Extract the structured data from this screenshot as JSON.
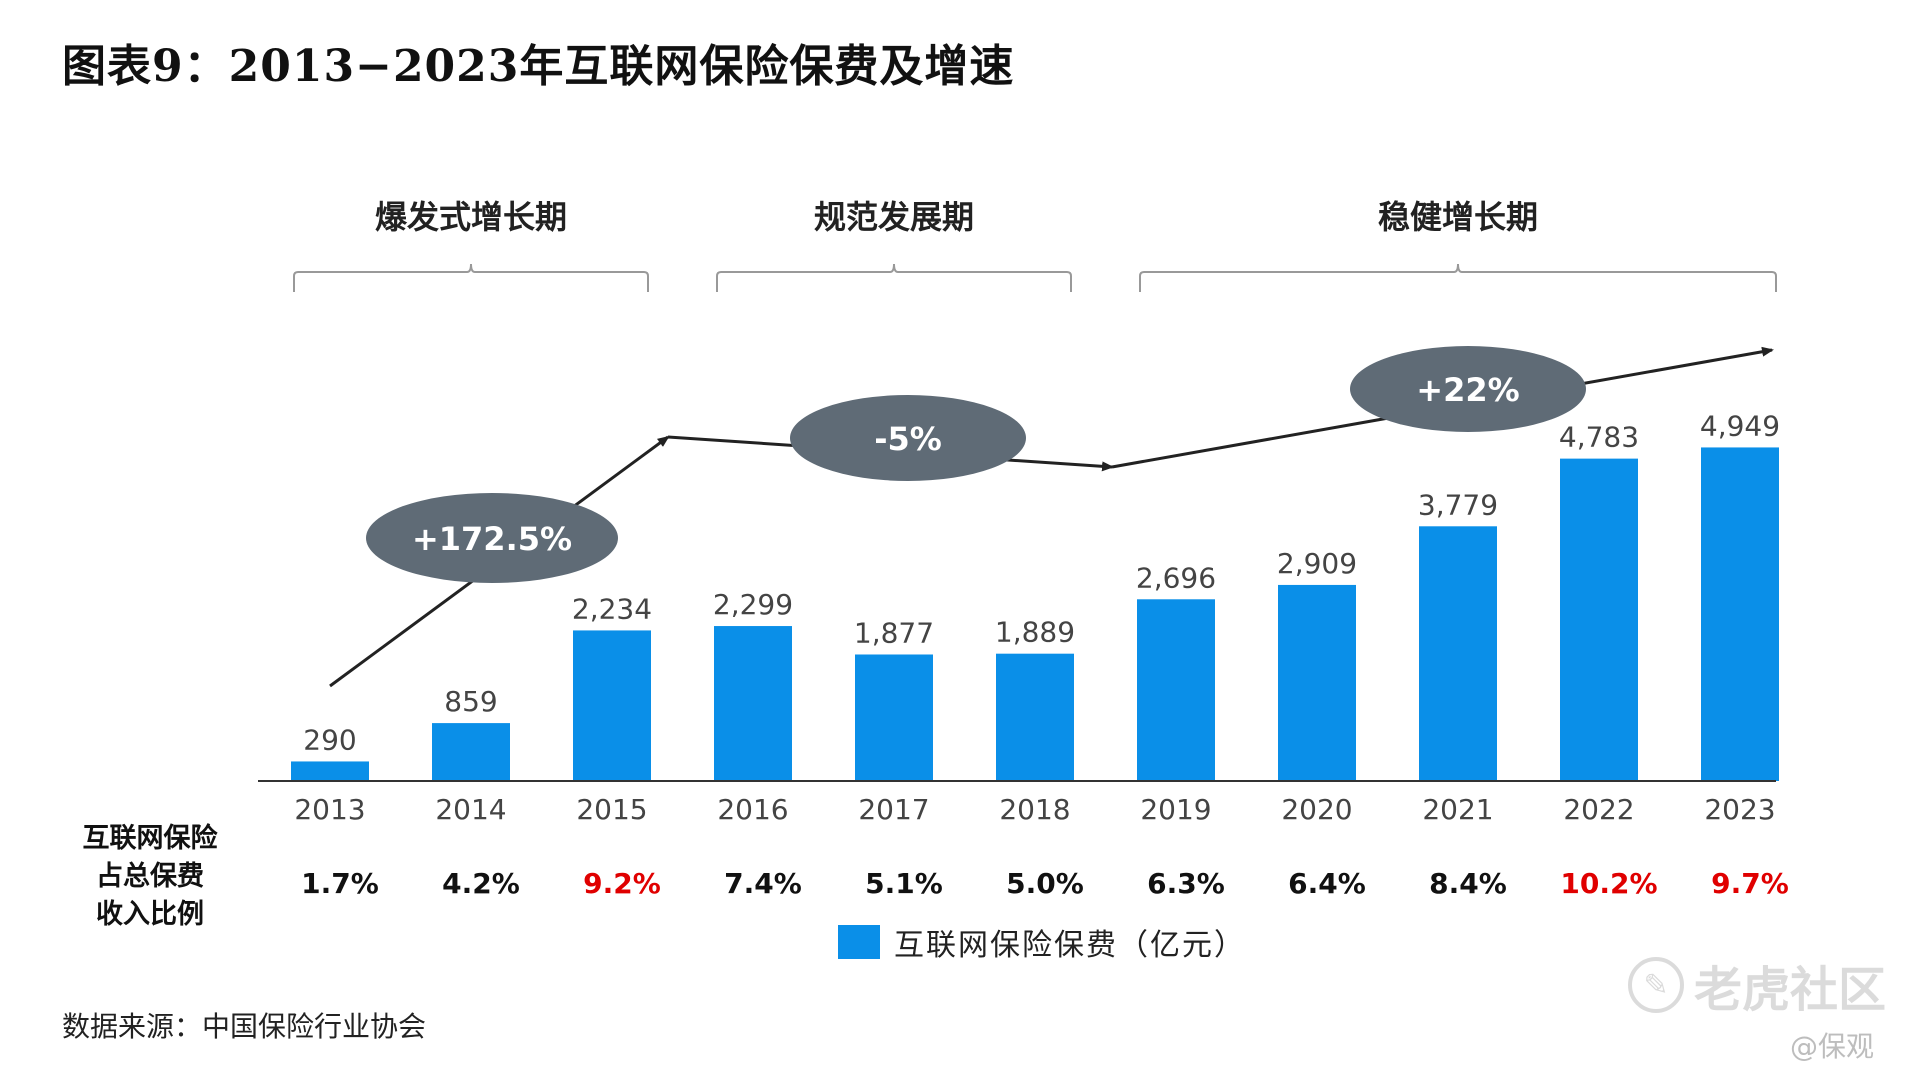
{
  "title": "图表9：2013−2023年互联网保险保费及增速",
  "phases": [
    {
      "label": "爆发式增长期",
      "start_index": 0,
      "end_index": 2
    },
    {
      "label": "规范发展期",
      "start_index": 3,
      "end_index": 5
    },
    {
      "label": "稳健增长期",
      "start_index": 6,
      "end_index": 10
    }
  ],
  "growth_bubbles": [
    "+172.5%",
    "-5%",
    "+22%"
  ],
  "row_header_lines": [
    "互联网保险",
    "占总保费",
    "收入比例"
  ],
  "legend_label": "互联网保险保费（亿元）",
  "source": "数据来源：中国保险行业协会",
  "watermark": {
    "text": "老虎社区",
    "author": "@保观",
    "icon": "tiger-community-logo-icon"
  },
  "colors": {
    "bar": "#0A8FE8",
    "bubble": "#5F6B76",
    "highlight": "#E00000",
    "normal": "#111111"
  },
  "chart_data": {
    "type": "bar",
    "title": "2013−2023年互联网保险保费及增速",
    "categories": [
      "2013",
      "2014",
      "2015",
      "2016",
      "2017",
      "2018",
      "2019",
      "2020",
      "2021",
      "2022",
      "2023"
    ],
    "series": [
      {
        "name": "互联网保险保费（亿元）",
        "values": [
          290,
          859,
          2234,
          2299,
          1877,
          1889,
          2696,
          2909,
          3779,
          4783,
          4949
        ]
      }
    ],
    "value_labels": [
      "290",
      "859",
      "2,234",
      "2,299",
      "1,877",
      "1,889",
      "2,696",
      "2,909",
      "3,779",
      "4,783",
      "4,949"
    ],
    "ratio_labels": [
      "1.7%",
      "4.2%",
      "9.2%",
      "7.4%",
      "5.1%",
      "5.0%",
      "6.3%",
      "6.4%",
      "8.4%",
      "10.2%",
      "9.7%"
    ],
    "ratio_highlight": [
      false,
      false,
      true,
      false,
      false,
      false,
      false,
      false,
      false,
      true,
      true
    ],
    "ylim": [
      0,
      5200
    ],
    "xlabel": "",
    "ylabel": "",
    "legend_position": "bottom"
  }
}
